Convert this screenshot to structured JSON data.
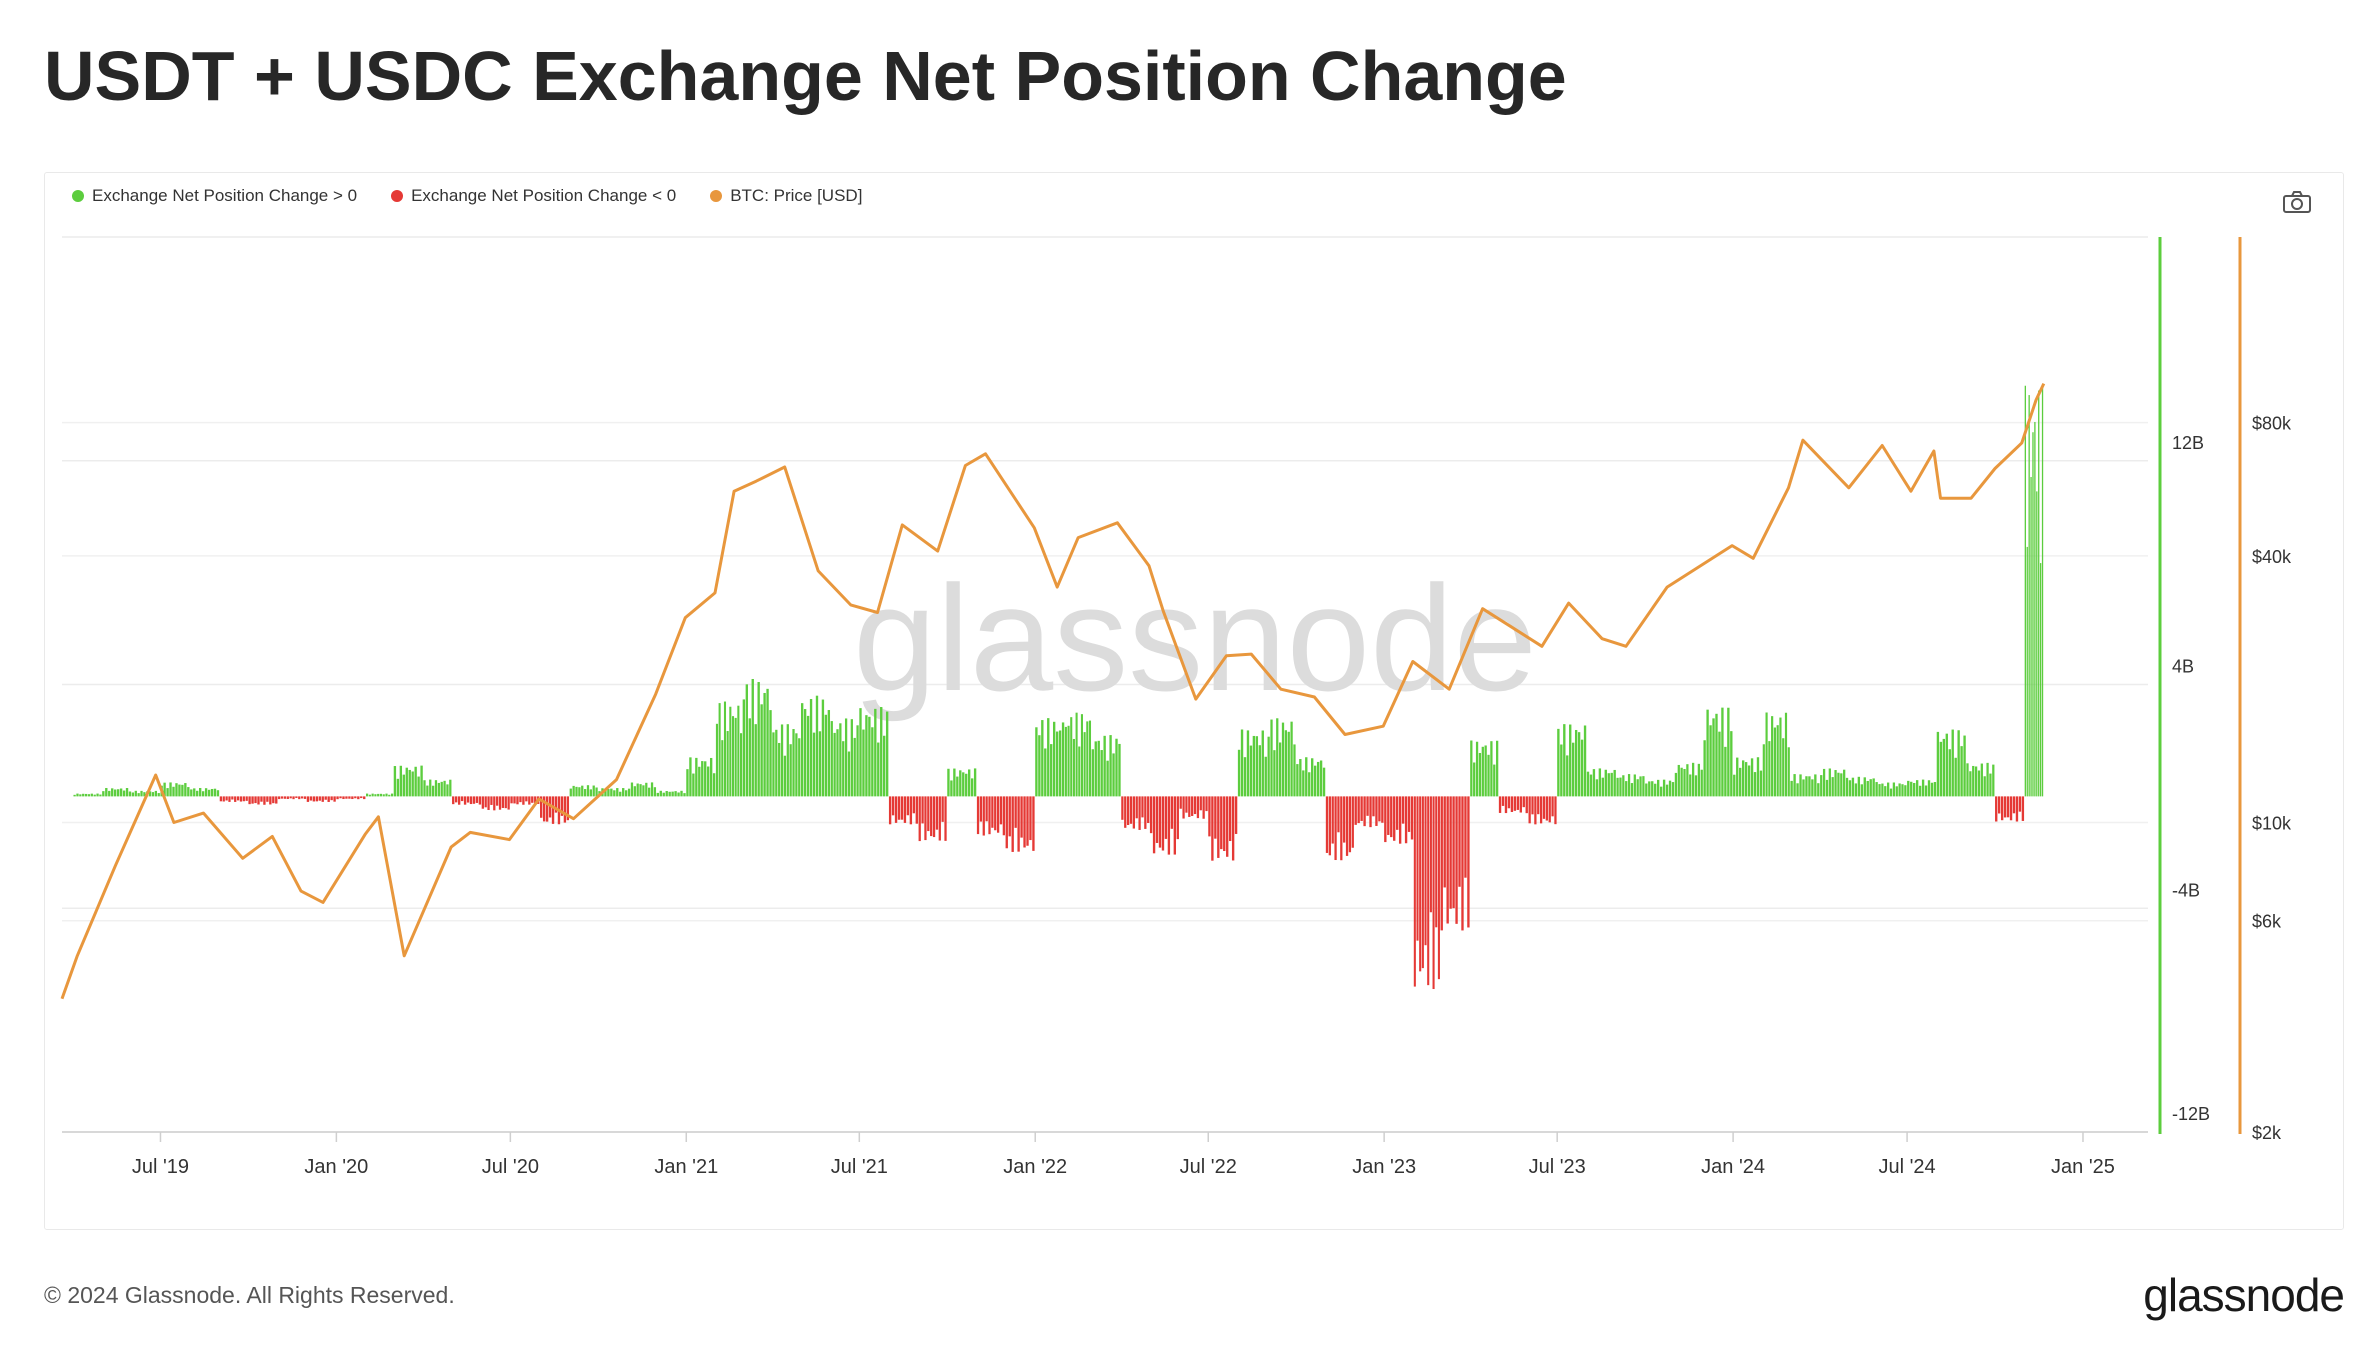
{
  "title": "USDT + USDC Exchange Net Position Change",
  "legend": [
    {
      "label": "Exchange Net Position Change > 0",
      "color": "#5ccd3e"
    },
    {
      "label": "Exchange Net Position Change < 0",
      "color": "#e53935"
    },
    {
      "label": "BTC: Price [USD]",
      "color": "#e8973d"
    }
  ],
  "watermark": "glassnode",
  "camera_icon": "camera-icon",
  "footer": {
    "copyright": "© 2024 Glassnode. All Rights Reserved.",
    "brand": "glassnode"
  },
  "chart_data": {
    "type": "bar+line",
    "x_ticks": [
      "Jul '19",
      "Jan '20",
      "Jul '20",
      "Jan '21",
      "Jul '21",
      "Jan '22",
      "Jul '22",
      "Jan '23",
      "Jul '23",
      "Jan '24",
      "Jul '24",
      "Jan '25"
    ],
    "x_range": [
      "2019-03-20",
      "2025-03-10"
    ],
    "left_axis": {
      "ticks": [
        "12B",
        "4B",
        "-4B",
        "-12B"
      ],
      "values": [
        12,
        4,
        -4,
        -12
      ],
      "range": [
        -12,
        20
      ],
      "unit": "B"
    },
    "right_axis": {
      "ticks": [
        "$80k",
        "$40k",
        "$10k",
        "$6k",
        "$2k"
      ],
      "values": [
        80000,
        40000,
        10000,
        6000,
        2000
      ],
      "scale": "log",
      "range": [
        2000,
        210000
      ]
    },
    "colors": {
      "positive": "#5ccd3e",
      "negative": "#e53935",
      "price": "#e8973d"
    },
    "net_position_change_B": [
      [
        "2019-04-01",
        0.1
      ],
      [
        "2019-05-01",
        0.3
      ],
      [
        "2019-06-01",
        0.2
      ],
      [
        "2019-07-01",
        0.5
      ],
      [
        "2019-08-01",
        0.3
      ],
      [
        "2019-09-01",
        -0.2
      ],
      [
        "2019-10-01",
        -0.3
      ],
      [
        "2019-11-01",
        -0.1
      ],
      [
        "2019-12-01",
        -0.2
      ],
      [
        "2020-01-01",
        -0.1
      ],
      [
        "2020-02-01",
        0.1
      ],
      [
        "2020-03-01",
        1.1
      ],
      [
        "2020-04-01",
        0.6
      ],
      [
        "2020-05-01",
        -0.3
      ],
      [
        "2020-06-01",
        -0.5
      ],
      [
        "2020-07-01",
        -0.3
      ],
      [
        "2020-08-01",
        -1.0
      ],
      [
        "2020-09-01",
        0.4
      ],
      [
        "2020-10-01",
        0.3
      ],
      [
        "2020-11-01",
        0.5
      ],
      [
        "2020-12-01",
        0.2
      ],
      [
        "2021-01-01",
        1.4
      ],
      [
        "2021-02-01",
        3.4
      ],
      [
        "2021-03-01",
        4.2
      ],
      [
        "2021-04-01",
        2.6
      ],
      [
        "2021-05-01",
        3.6
      ],
      [
        "2021-06-01",
        2.8
      ],
      [
        "2021-07-01",
        3.2
      ],
      [
        "2021-08-01",
        -1.0
      ],
      [
        "2021-09-01",
        -1.6
      ],
      [
        "2021-10-01",
        1.0
      ],
      [
        "2021-11-01",
        -1.4
      ],
      [
        "2021-12-01",
        -2.0
      ],
      [
        "2022-01-01",
        2.8
      ],
      [
        "2022-02-01",
        3.0
      ],
      [
        "2022-03-01",
        2.2
      ],
      [
        "2022-04-01",
        -1.2
      ],
      [
        "2022-05-01",
        -2.1
      ],
      [
        "2022-06-01",
        -0.8
      ],
      [
        "2022-07-01",
        -2.3
      ],
      [
        "2022-08-01",
        2.4
      ],
      [
        "2022-09-01",
        2.8
      ],
      [
        "2022-10-01",
        1.4
      ],
      [
        "2022-11-01",
        -2.3
      ],
      [
        "2022-12-01",
        -1.1
      ],
      [
        "2023-01-01",
        -1.7
      ],
      [
        "2023-02-01",
        -6.9
      ],
      [
        "2023-03-01",
        -4.8
      ],
      [
        "2023-04-01",
        2.0
      ],
      [
        "2023-05-01",
        -0.6
      ],
      [
        "2023-06-01",
        -1.0
      ],
      [
        "2023-07-01",
        2.6
      ],
      [
        "2023-08-01",
        1.0
      ],
      [
        "2023-09-01",
        0.8
      ],
      [
        "2023-10-01",
        0.6
      ],
      [
        "2023-11-01",
        1.2
      ],
      [
        "2023-12-01",
        3.2
      ],
      [
        "2024-01-01",
        1.4
      ],
      [
        "2024-02-01",
        3.0
      ],
      [
        "2024-03-01",
        0.8
      ],
      [
        "2024-04-01",
        1.0
      ],
      [
        "2024-05-01",
        0.7
      ],
      [
        "2024-06-01",
        0.5
      ],
      [
        "2024-07-01",
        0.6
      ],
      [
        "2024-08-01",
        2.4
      ],
      [
        "2024-09-01",
        1.2
      ],
      [
        "2024-10-01",
        -0.9
      ],
      [
        "2024-11-01",
        14.7
      ]
    ],
    "btc_price_usd": [
      [
        "2019-03-20",
        4000
      ],
      [
        "2019-04-05",
        5000
      ],
      [
        "2019-05-15",
        8000
      ],
      [
        "2019-06-26",
        12800
      ],
      [
        "2019-07-15",
        10000
      ],
      [
        "2019-08-15",
        10500
      ],
      [
        "2019-09-25",
        8300
      ],
      [
        "2019-10-26",
        9300
      ],
      [
        "2019-11-25",
        7000
      ],
      [
        "2019-12-18",
        6600
      ],
      [
        "2020-01-31",
        9400
      ],
      [
        "2020-02-14",
        10300
      ],
      [
        "2020-03-12",
        5000
      ],
      [
        "2020-04-30",
        8800
      ],
      [
        "2020-05-20",
        9500
      ],
      [
        "2020-06-30",
        9150
      ],
      [
        "2020-07-31",
        11300
      ],
      [
        "2020-09-05",
        10200
      ],
      [
        "2020-10-20",
        12500
      ],
      [
        "2020-11-30",
        19500
      ],
      [
        "2020-12-31",
        29000
      ],
      [
        "2021-01-31",
        33000
      ],
      [
        "2021-02-20",
        56000
      ],
      [
        "2021-03-15",
        59000
      ],
      [
        "2021-04-14",
        63500
      ],
      [
        "2021-05-19",
        37000
      ],
      [
        "2021-06-22",
        31000
      ],
      [
        "2021-07-20",
        29800
      ],
      [
        "2021-08-15",
        47000
      ],
      [
        "2021-09-21",
        41000
      ],
      [
        "2021-10-20",
        64000
      ],
      [
        "2021-11-10",
        68000
      ],
      [
        "2021-12-31",
        46300
      ],
      [
        "2022-01-24",
        34000
      ],
      [
        "2022-02-15",
        44000
      ],
      [
        "2022-03-28",
        47500
      ],
      [
        "2022-04-30",
        38000
      ],
      [
        "2022-05-15",
        30000
      ],
      [
        "2022-06-18",
        19000
      ],
      [
        "2022-07-20",
        23800
      ],
      [
        "2022-08-15",
        24000
      ],
      [
        "2022-09-15",
        20000
      ],
      [
        "2022-10-20",
        19200
      ],
      [
        "2022-11-21",
        15800
      ],
      [
        "2022-12-31",
        16500
      ],
      [
        "2023-01-31",
        23100
      ],
      [
        "2023-03-10",
        20000
      ],
      [
        "2023-04-14",
        30400
      ],
      [
        "2023-06-15",
        25000
      ],
      [
        "2023-07-13",
        31300
      ],
      [
        "2023-08-17",
        26000
      ],
      [
        "2023-09-11",
        25000
      ],
      [
        "2023-10-24",
        34000
      ],
      [
        "2023-12-31",
        42200
      ],
      [
        "2024-01-22",
        39500
      ],
      [
        "2024-02-28",
        57000
      ],
      [
        "2024-03-14",
        73000
      ],
      [
        "2024-05-01",
        57000
      ],
      [
        "2024-06-05",
        71000
      ],
      [
        "2024-07-05",
        56000
      ],
      [
        "2024-07-29",
        69000
      ],
      [
        "2024-08-05",
        54000
      ],
      [
        "2024-09-06",
        54000
      ],
      [
        "2024-10-01",
        63000
      ],
      [
        "2024-10-29",
        72000
      ],
      [
        "2024-11-13",
        90000
      ],
      [
        "2024-11-21",
        98000
      ]
    ]
  }
}
